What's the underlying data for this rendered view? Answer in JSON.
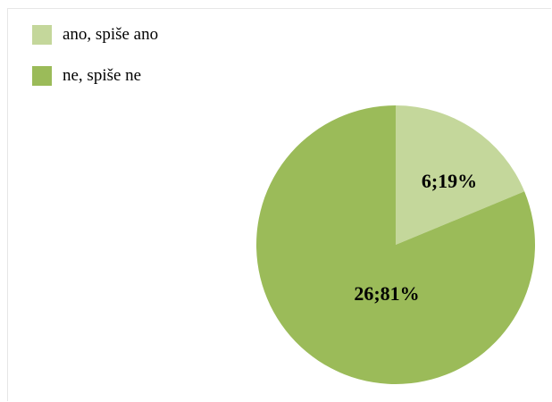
{
  "chart_data": {
    "type": "pie",
    "title": "",
    "categories": [
      "ano, spiše ano",
      "ne, spiše ne"
    ],
    "values": [
      6,
      26
    ],
    "percentages": [
      19,
      81
    ],
    "data_labels": [
      "6;19%",
      "26;81%"
    ],
    "colors": [
      "#c4d79b",
      "#9bbb59"
    ],
    "legend_position": "top-left",
    "start_angle_deg": 0,
    "direction": "clockwise"
  }
}
